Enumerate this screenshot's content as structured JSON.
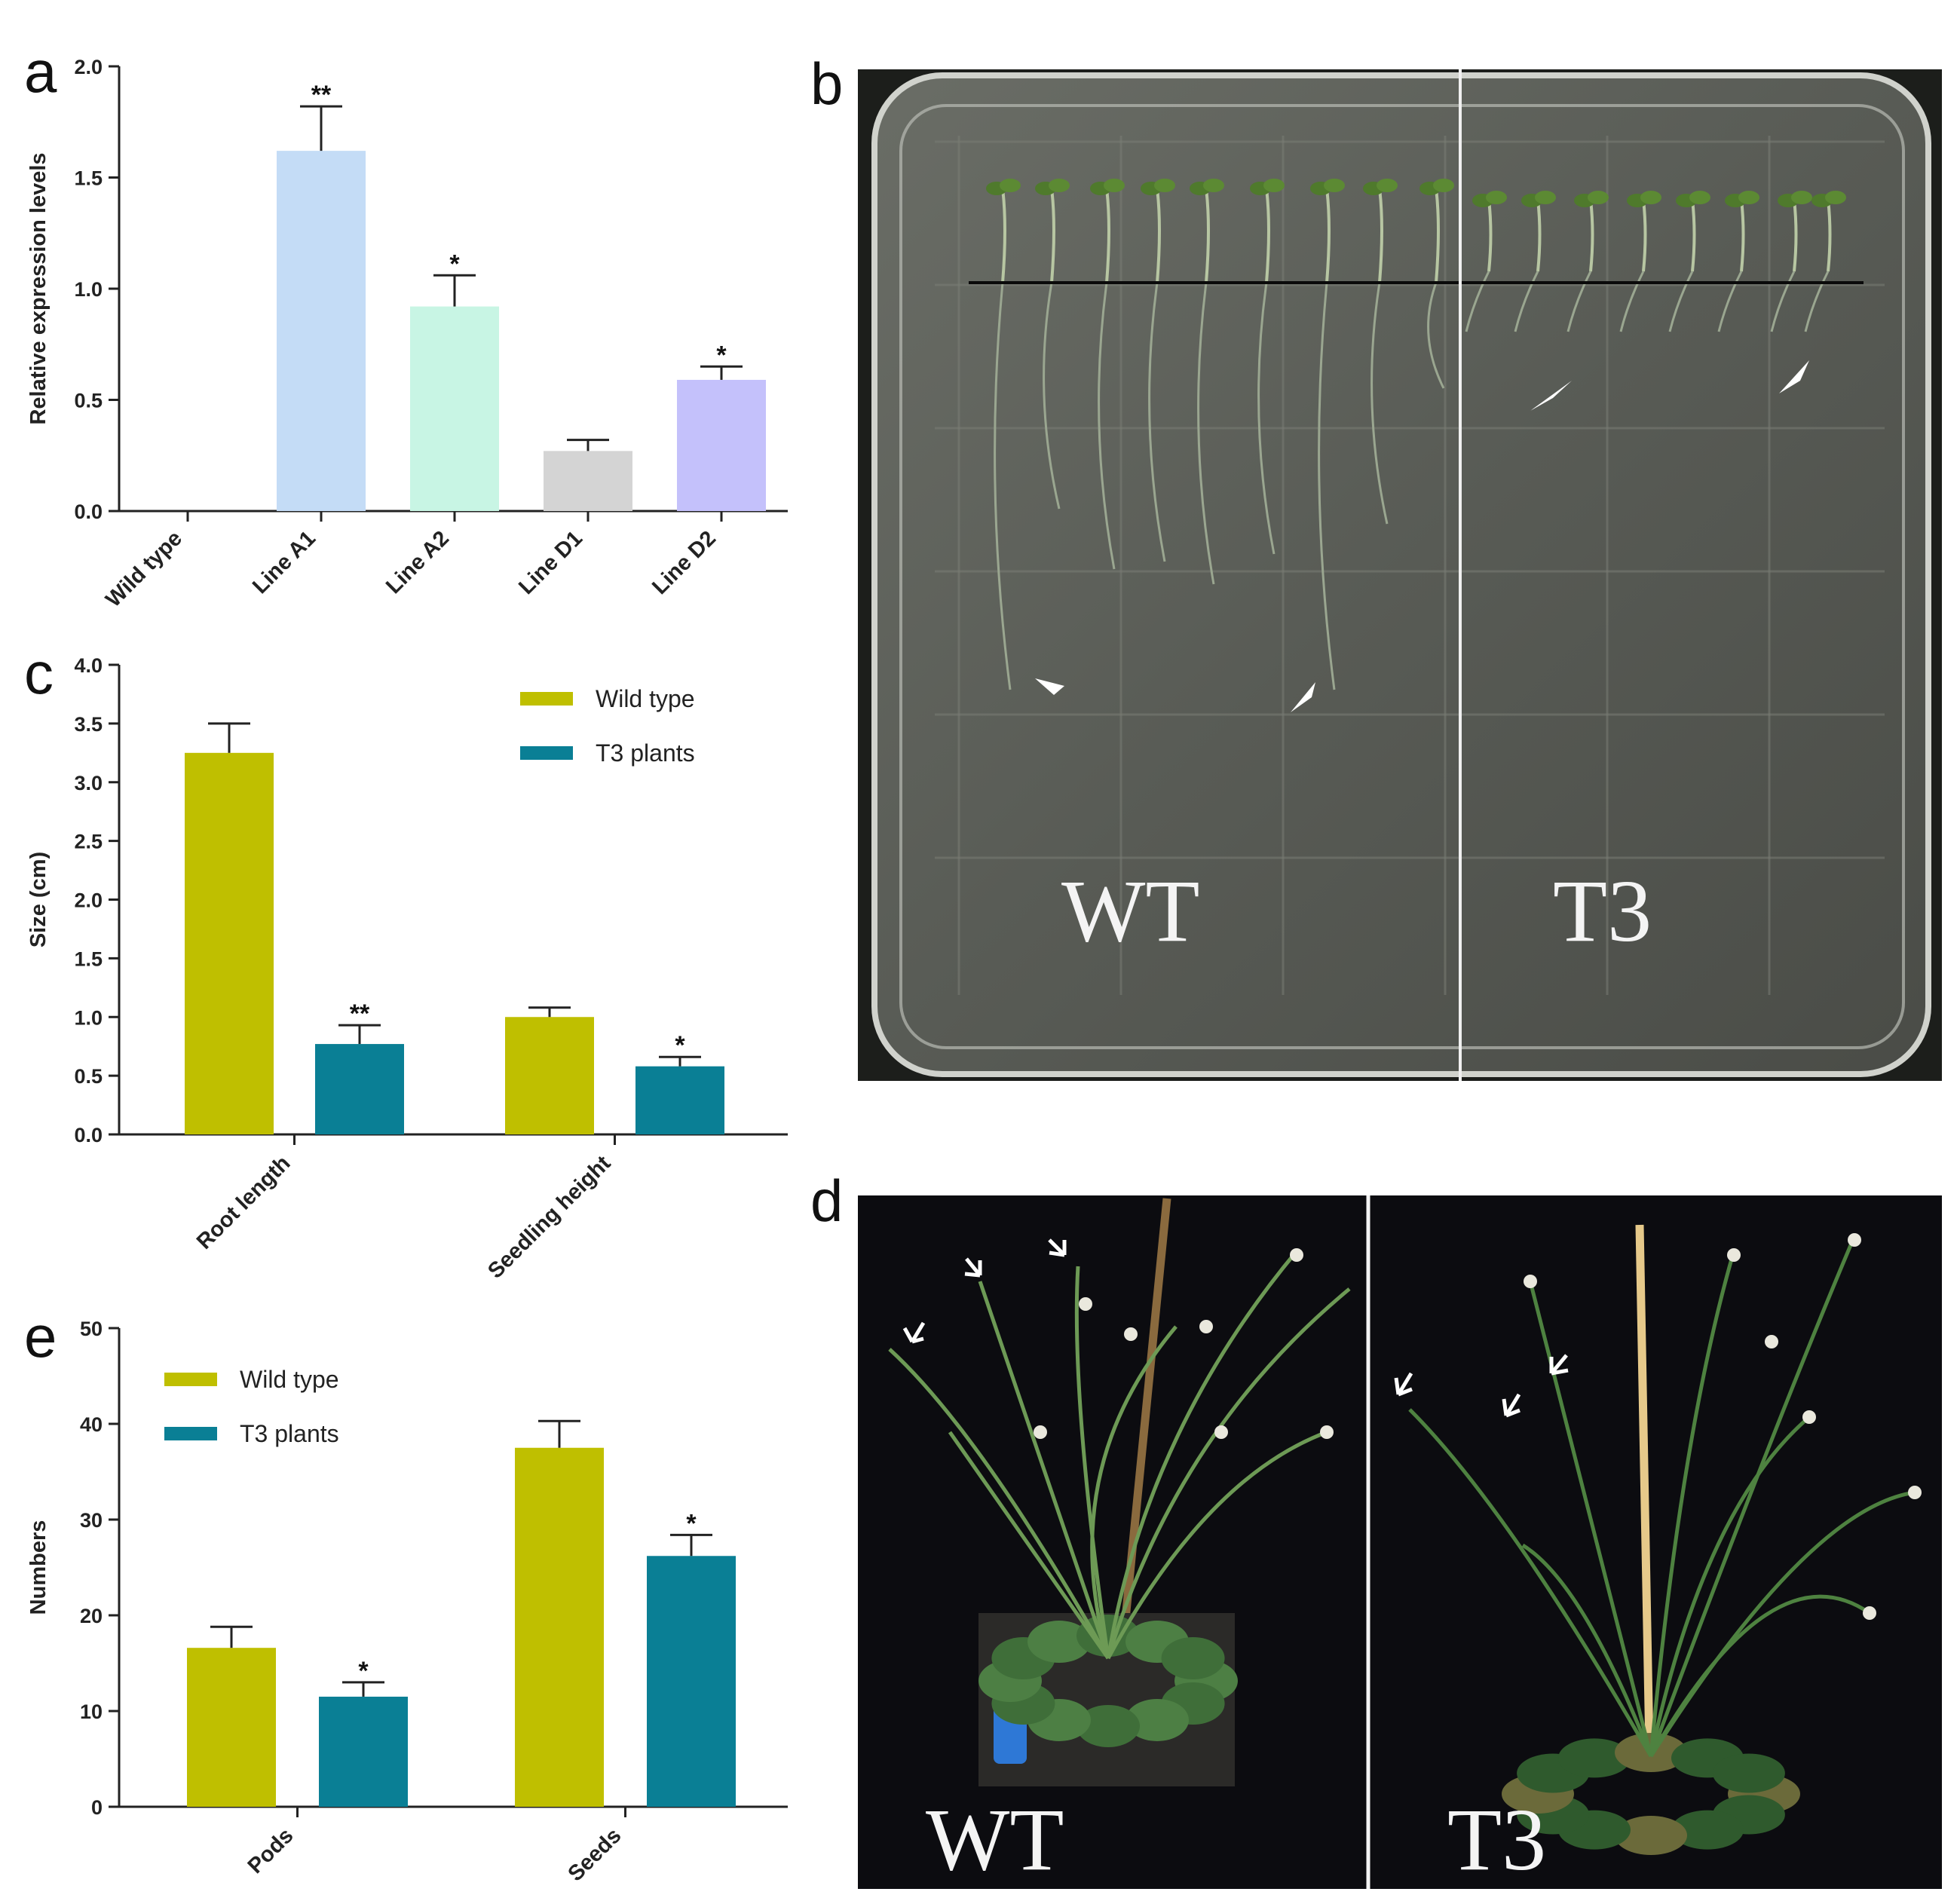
{
  "panel_labels": {
    "a": "a",
    "b": "b",
    "c": "c",
    "d": "d",
    "e": "e"
  },
  "significance": {
    "double": "**",
    "single": "*"
  },
  "photo_b": {
    "left_label": "WT",
    "right_label": "T3"
  },
  "photo_d": {
    "left_label": "WT",
    "right_label": "T3"
  },
  "colors": {
    "wild_type": "#bfbf00",
    "t3": "#0a7f95",
    "line_a1": "#c4dcf6",
    "line_a2": "#c8f5e4",
    "line_d1": "#d4d4d4",
    "line_d2": "#c4c1fb",
    "plate_bg": "#5f625b",
    "photo_bg": "#0c0c10"
  },
  "chart_data": [
    {
      "id": "a",
      "type": "bar",
      "ylabel": "Relative expression levels",
      "xlabel": "",
      "ylim": [
        0,
        2.0
      ],
      "yticks": [
        "0.0",
        "0.5",
        "1.0",
        "1.5",
        "2.0"
      ],
      "categories": [
        "Wild type",
        "Line A1",
        "Line A2",
        "Line D1",
        "Line D2"
      ],
      "values": [
        0,
        1.62,
        0.92,
        0.27,
        0.59
      ],
      "errors": [
        0,
        0.2,
        0.14,
        0.05,
        0.06
      ],
      "significance": [
        "",
        "**",
        "*",
        "",
        "*"
      ],
      "legend": "none"
    },
    {
      "id": "c",
      "type": "bar",
      "ylabel": "Size (cm)",
      "xlabel": "",
      "ylim": [
        0,
        4.0
      ],
      "yticks": [
        "0.0",
        "0.5",
        "1.0",
        "1.5",
        "2.0",
        "2.5",
        "3.0",
        "3.5",
        "4.0"
      ],
      "categories": [
        "Root length",
        "Seedling height"
      ],
      "series": [
        {
          "name": "Wild type",
          "values": [
            3.25,
            1.0
          ],
          "errors": [
            0.25,
            0.08
          ],
          "significance": [
            "",
            ""
          ]
        },
        {
          "name": "T3 plants",
          "values": [
            0.77,
            0.58
          ],
          "errors": [
            0.16,
            0.08
          ],
          "significance": [
            "**",
            "*"
          ]
        }
      ],
      "legend": "top-right"
    },
    {
      "id": "e",
      "type": "bar",
      "ylabel": "Numbers",
      "xlabel": "",
      "ylim": [
        0,
        50
      ],
      "yticks": [
        "0",
        "10",
        "20",
        "30",
        "40",
        "50"
      ],
      "categories": [
        "Pods",
        "Seeds"
      ],
      "series": [
        {
          "name": "Wild type",
          "values": [
            16.6,
            37.5
          ],
          "errors": [
            2.2,
            2.8
          ],
          "significance": [
            "",
            ""
          ]
        },
        {
          "name": "T3 plants",
          "values": [
            11.5,
            26.2
          ],
          "errors": [
            1.5,
            2.2
          ],
          "significance": [
            "*",
            "*"
          ]
        }
      ],
      "legend": "top-left"
    }
  ]
}
